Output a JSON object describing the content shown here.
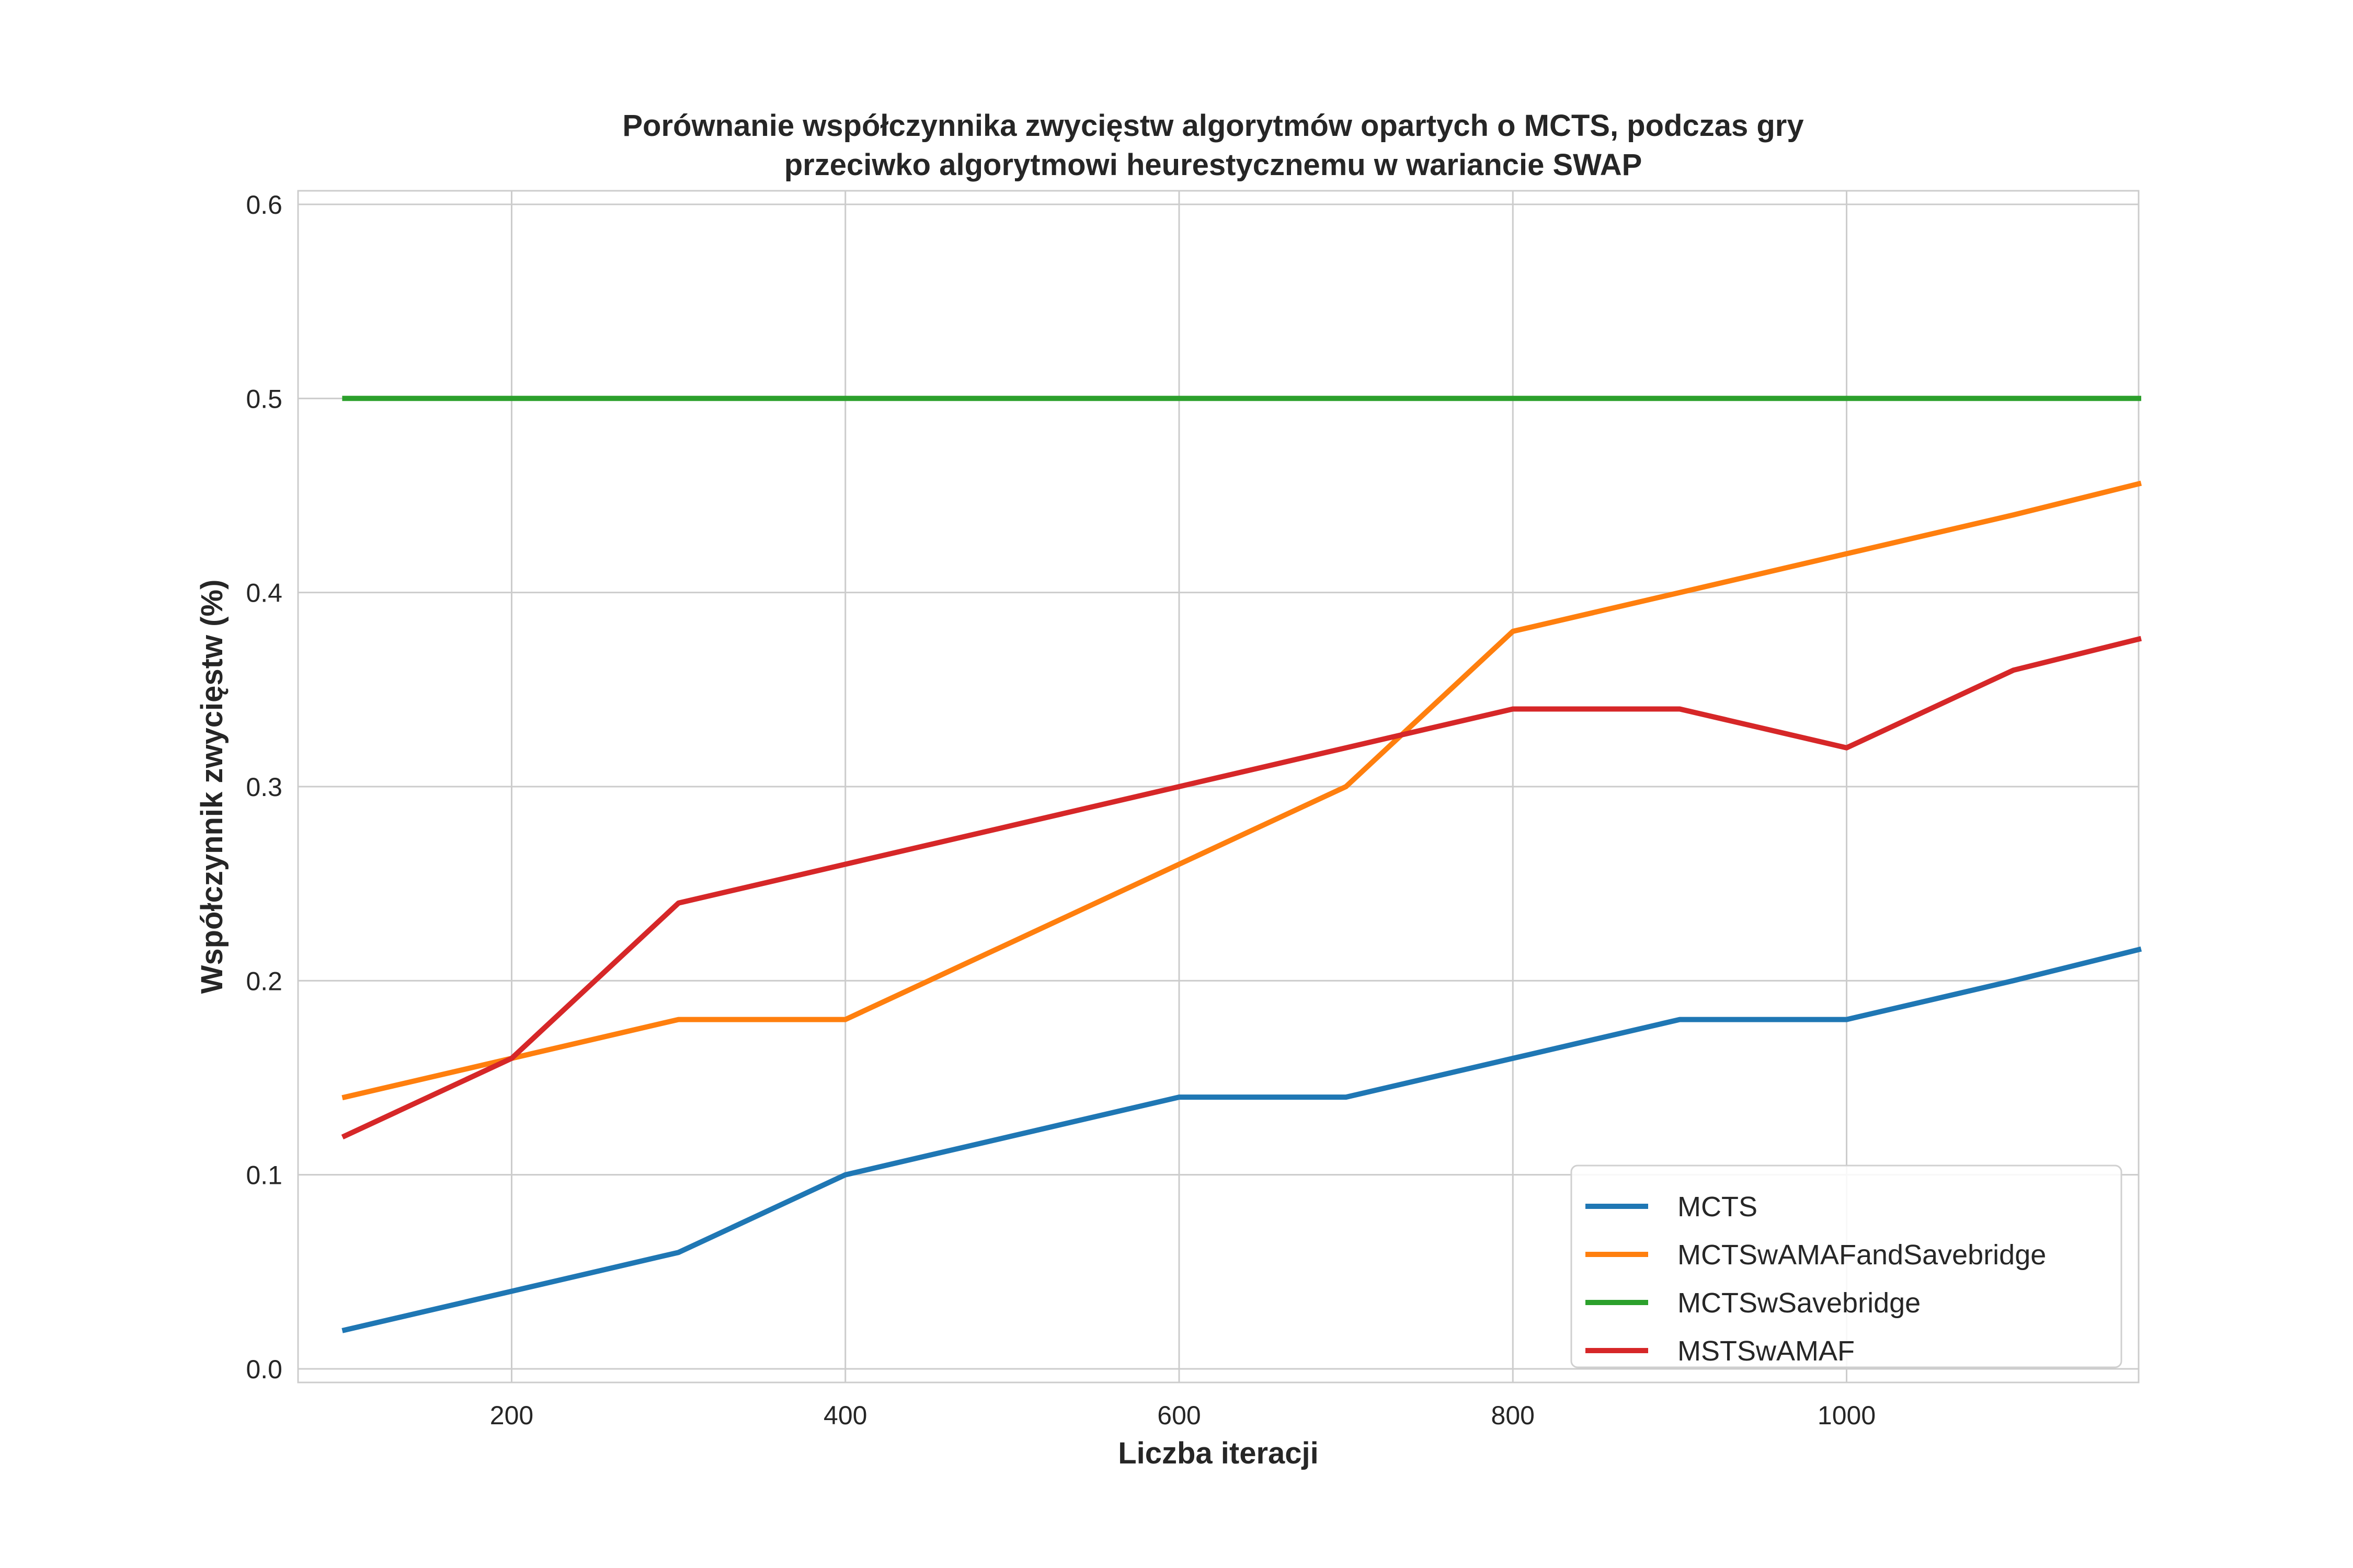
{
  "chart_data": {
    "type": "line",
    "title_lines": [
      "Porównanie współczynnika zwycięstw algorytmów opartych o MCTS, podczas gry",
      "przeciwko algorytmowi heurestycznemu w wariancie SWAP"
    ],
    "xlabel": "Liczba iteracji",
    "ylabel": "Współczynnik zwycięstw (%)",
    "xlim": [
      72,
      1175
    ],
    "ylim": [
      -0.007,
      0.607
    ],
    "xticks": [
      200,
      400,
      600,
      800,
      1000
    ],
    "yticks": [
      0.0,
      0.1,
      0.2,
      0.3,
      0.4,
      0.5,
      0.6
    ],
    "xtick_labels": [
      "200",
      "400",
      "600",
      "800",
      "1000"
    ],
    "ytick_labels": [
      "0.0",
      "0.1",
      "0.2",
      "0.3",
      "0.4",
      "0.5",
      "0.6"
    ],
    "grid": true,
    "legend_position": "bottom-right",
    "x": [
      100,
      200,
      300,
      400,
      500,
      600,
      700,
      800,
      900,
      1000,
      1100,
      1175
    ],
    "series": [
      {
        "name": "MCTS",
        "color": "#1f77b4",
        "values": [
          0.02,
          0.04,
          0.06,
          0.1,
          0.12,
          0.14,
          0.14,
          0.16,
          0.18,
          0.18,
          0.2,
          0.216
        ]
      },
      {
        "name": "MCTSwAMAFandSavebridge",
        "color": "#ff7f0e",
        "values": [
          0.14,
          0.16,
          0.18,
          0.18,
          0.22,
          0.26,
          0.3,
          0.38,
          0.4,
          0.42,
          0.44,
          0.456
        ]
      },
      {
        "name": "MCTSwSavebridge",
        "color": "#2ca02c",
        "values": [
          0.5,
          0.5,
          0.5,
          0.5,
          0.5,
          0.5,
          0.5,
          0.5,
          0.5,
          0.5,
          0.5,
          0.5
        ]
      },
      {
        "name": "MSTSwAMAF",
        "color": "#d62728",
        "values": [
          0.12,
          0.16,
          0.24,
          0.26,
          0.28,
          0.3,
          0.32,
          0.34,
          0.34,
          0.32,
          0.36,
          0.376
        ]
      }
    ]
  }
}
